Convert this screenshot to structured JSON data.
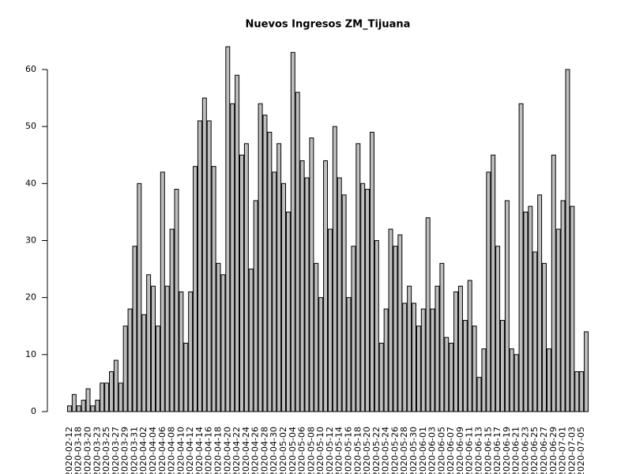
{
  "chart_data": {
    "type": "bar",
    "title": "Nuevos Ingresos ZM_Tijuana",
    "categories": [
      "2020-02-12",
      null,
      "2020-03-18",
      null,
      "2020-03-20",
      null,
      "2020-03-23",
      null,
      "2020-03-25",
      null,
      "2020-03-27",
      null,
      "2020-03-29",
      null,
      "2020-03-31",
      null,
      "2020-04-02",
      null,
      "2020-04-04",
      null,
      "2020-04-06",
      null,
      "2020-04-08",
      null,
      "2020-04-10",
      null,
      "2020-04-12",
      null,
      "2020-04-14",
      null,
      "2020-04-16",
      null,
      "2020-04-18",
      null,
      "2020-04-20",
      null,
      "2020-04-22",
      null,
      "2020-04-24",
      null,
      "2020-04-26",
      null,
      "2020-04-28",
      null,
      "2020-04-30",
      null,
      "2020-05-02",
      null,
      "2020-05-04",
      null,
      "2020-05-06",
      null,
      "2020-05-08",
      null,
      "2020-05-10",
      null,
      "2020-05-12",
      null,
      "2020-05-14",
      null,
      "2020-05-16",
      null,
      "2020-05-18",
      null,
      "2020-05-20",
      null,
      "2020-05-22",
      null,
      "2020-05-24",
      null,
      "2020-05-26",
      null,
      "2020-05-28",
      null,
      "2020-05-30",
      null,
      "2020-06-01",
      null,
      "2020-06-03",
      null,
      "2020-06-05",
      null,
      "2020-06-07",
      null,
      "2020-06-09",
      null,
      "2020-06-11",
      null,
      "2020-06-13",
      null,
      "2020-06-15",
      null,
      "2020-06-17",
      null,
      "2020-06-19",
      null,
      "2020-06-21",
      null,
      "2020-06-23",
      null,
      "2020-06-25",
      null,
      "2020-06-27",
      null,
      "2020-06-29",
      null,
      "2020-07-01",
      null,
      "2020-07-03",
      null,
      "2020-07-05",
      null
    ],
    "values": [
      1,
      3,
      1,
      2,
      4,
      1,
      2,
      5,
      5,
      7,
      9,
      5,
      15,
      18,
      29,
      40,
      17,
      24,
      22,
      15,
      42,
      22,
      32,
      39,
      21,
      12,
      21,
      43,
      51,
      55,
      51,
      43,
      26,
      24,
      64,
      54,
      59,
      45,
      47,
      25,
      37,
      54,
      52,
      49,
      42,
      47,
      40,
      35,
      63,
      56,
      44,
      41,
      48,
      26,
      20,
      44,
      32,
      50,
      41,
      38,
      20,
      29,
      47,
      40,
      39,
      49,
      30,
      12,
      18,
      32,
      29,
      31,
      19,
      22,
      19,
      15,
      18,
      34,
      18,
      22,
      26,
      13,
      12,
      21,
      22,
      16,
      23,
      15,
      6,
      11,
      42,
      45,
      29,
      16,
      37,
      11,
      10,
      54,
      35,
      36,
      28,
      38,
      26,
      11,
      45,
      32,
      37,
      60,
      36,
      7,
      7,
      14
    ],
    "color": "#bebebe",
    "ylim": [
      0,
      60
    ],
    "yticks": [
      0,
      10,
      20,
      30,
      40,
      50,
      60
    ]
  }
}
